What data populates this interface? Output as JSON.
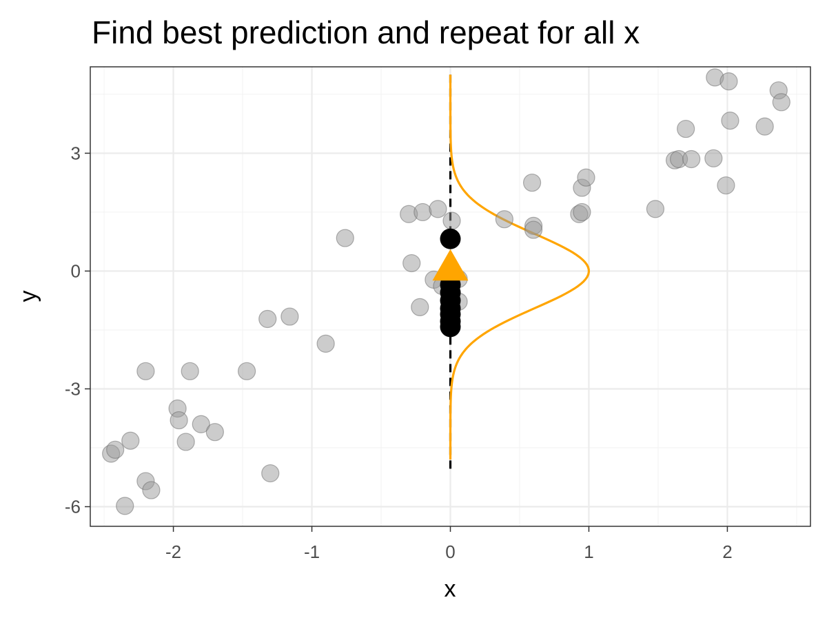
{
  "chart_data": {
    "type": "scatter",
    "title": "Find best prediction and repeat for all x",
    "xlabel": "x",
    "ylabel": "y",
    "xlim": [
      -2.6,
      2.6
    ],
    "ylim": [
      -6.5,
      5.2
    ],
    "x_ticks": [
      -2,
      -1,
      0,
      1,
      2
    ],
    "y_ticks": [
      -6,
      -3,
      0,
      3
    ],
    "x_tick_labels": [
      "-2",
      "-1",
      "0",
      "1",
      "2"
    ],
    "y_tick_labels": [
      "-6",
      "-3",
      "0",
      "3"
    ],
    "grid": true,
    "series": [
      {
        "role": "observed",
        "color": "#999999",
        "points": [
          {
            "x": -2.45,
            "y": -4.65
          },
          {
            "x": -2.42,
            "y": -4.55
          },
          {
            "x": -2.35,
            "y": -5.98
          },
          {
            "x": -2.31,
            "y": -4.32
          },
          {
            "x": -2.2,
            "y": -5.35
          },
          {
            "x": -2.2,
            "y": -2.55
          },
          {
            "x": -2.16,
            "y": -5.58
          },
          {
            "x": -1.97,
            "y": -3.5
          },
          {
            "x": -1.96,
            "y": -3.8
          },
          {
            "x": -1.91,
            "y": -4.35
          },
          {
            "x": -1.88,
            "y": -2.55
          },
          {
            "x": -1.8,
            "y": -3.9
          },
          {
            "x": -1.7,
            "y": -4.1
          },
          {
            "x": -1.47,
            "y": -2.55
          },
          {
            "x": -1.32,
            "y": -1.22
          },
          {
            "x": -1.3,
            "y": -5.15
          },
          {
            "x": -1.16,
            "y": -1.16
          },
          {
            "x": -0.9,
            "y": -1.85
          },
          {
            "x": -0.76,
            "y": 0.84
          },
          {
            "x": -0.3,
            "y": 1.45
          },
          {
            "x": -0.28,
            "y": 0.2
          },
          {
            "x": -0.22,
            "y": -0.92
          },
          {
            "x": -0.2,
            "y": 1.5
          },
          {
            "x": -0.12,
            "y": -0.22
          },
          {
            "x": -0.09,
            "y": 1.58
          },
          {
            "x": -0.06,
            "y": -0.38
          },
          {
            "x": 0.01,
            "y": 1.28
          },
          {
            "x": 0.06,
            "y": -0.78
          },
          {
            "x": 0.06,
            "y": -0.2
          },
          {
            "x": 0.39,
            "y": 1.32
          },
          {
            "x": 0.59,
            "y": 2.25
          },
          {
            "x": 0.6,
            "y": 1.15
          },
          {
            "x": 0.6,
            "y": 1.05
          },
          {
            "x": 0.93,
            "y": 1.45
          },
          {
            "x": 0.95,
            "y": 1.5
          },
          {
            "x": 0.95,
            "y": 2.12
          },
          {
            "x": 0.98,
            "y": 2.38
          },
          {
            "x": 1.48,
            "y": 1.58
          },
          {
            "x": 1.62,
            "y": 2.82
          },
          {
            "x": 1.65,
            "y": 2.85
          },
          {
            "x": 1.7,
            "y": 3.62
          },
          {
            "x": 1.74,
            "y": 2.85
          },
          {
            "x": 1.9,
            "y": 2.87
          },
          {
            "x": 1.91,
            "y": 4.93
          },
          {
            "x": 1.99,
            "y": 2.18
          },
          {
            "x": 2.01,
            "y": 4.83
          },
          {
            "x": 2.02,
            "y": 3.83
          },
          {
            "x": 2.27,
            "y": 3.68
          },
          {
            "x": 2.37,
            "y": 4.6
          },
          {
            "x": 2.39,
            "y": 4.3
          }
        ]
      },
      {
        "role": "at-x-equals-0",
        "color": "#000000",
        "points": [
          {
            "x": 0,
            "y": 0.82
          },
          {
            "x": 0,
            "y": -0.15
          },
          {
            "x": 0,
            "y": -0.35
          },
          {
            "x": 0,
            "y": -0.55
          },
          {
            "x": 0,
            "y": -0.75
          },
          {
            "x": 0,
            "y": -0.95
          },
          {
            "x": 0,
            "y": -1.1
          },
          {
            "x": 0,
            "y": -1.28
          },
          {
            "x": 0,
            "y": -1.42
          }
        ]
      },
      {
        "role": "best-prediction",
        "type": "triangle",
        "color": "#FFA500",
        "x": 0,
        "y": 0.1
      },
      {
        "role": "density-curve",
        "type": "line",
        "color": "#FFA500",
        "shape": "gaussian",
        "center_x": 0,
        "mean_y": 0,
        "sd_y": 0.95,
        "peak_height_x": 1.0,
        "y_range": [
          -4.8,
          5.0
        ]
      },
      {
        "role": "vertical-reference",
        "type": "line",
        "style": "dashed",
        "color": "#000000",
        "x": 0,
        "y_range": [
          -5.1,
          5.0
        ]
      }
    ]
  }
}
